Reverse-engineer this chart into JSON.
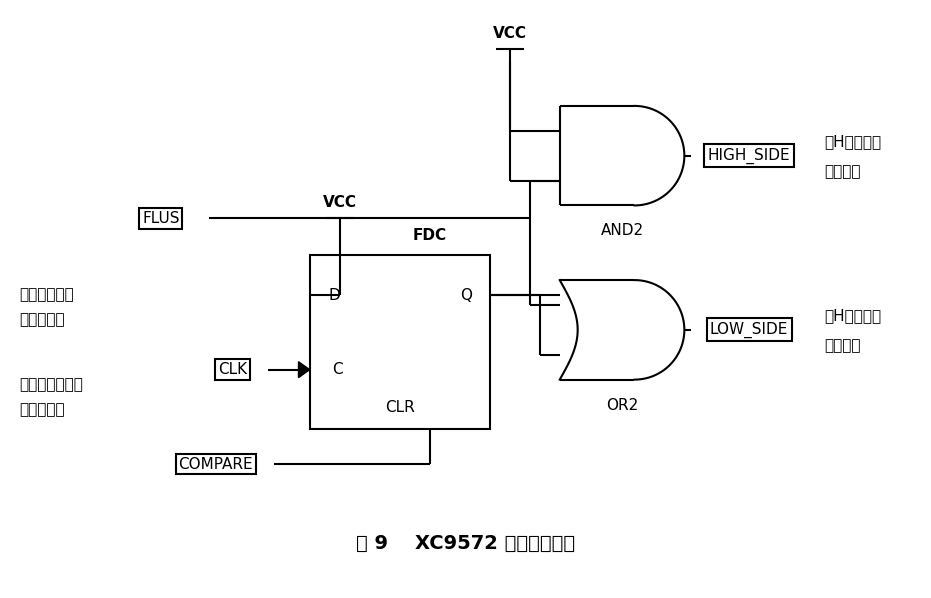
{
  "title": "图 9    XC9572 逻辑控制电路",
  "bg_color": "#ffffff",
  "line_color": "#000000",
  "text_color": "#000000",
  "figsize": [
    9.31,
    5.98
  ],
  "dpi": 100,
  "labels": {
    "vcc_top": "VCC",
    "and2": "AND2",
    "high_side": "HIGH_SIDE",
    "high_side_desc1": "接H桥的高侧",
    "high_side_desc2": "管子光耦",
    "flus": "FLUS",
    "desc_left1": "单片机输出的",
    "desc_left2": "相通电脉冲",
    "vcc_mid": "VCC",
    "fdc": "FDC",
    "D": "D",
    "Q": "Q",
    "clk_box": "CLK",
    "C": "C",
    "clr": "CLR",
    "compare_box": "COMPARE",
    "or2": "OR2",
    "low_side": "LOW_SIDE",
    "low_side_desc1": "接H桥的低侧",
    "low_side_desc2": "管子光耦",
    "desc_left3": "电压比较器输出",
    "desc_left4": "的比较结果"
  }
}
